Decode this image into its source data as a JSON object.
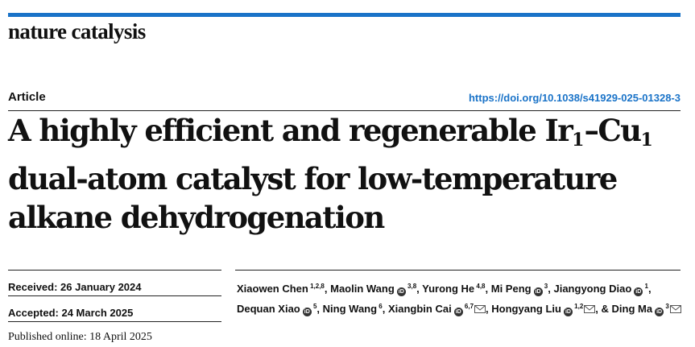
{
  "journal": "nature catalysis",
  "article_type": "Article",
  "doi": "https://doi.org/10.1038/s41929-025-01328-3",
  "title": {
    "part1": "A highly efficient and regenerable Ir",
    "sub1": "1",
    "dash": "–Cu",
    "sub2": "1",
    "line2": "dual-atom catalyst for low-temperature",
    "line3": "alkane dehydrogenation"
  },
  "dates": {
    "received": "Received: 26 January 2024",
    "accepted": "Accepted: 24 March 2025",
    "published": "Published online: 18 April 2025"
  },
  "authors": [
    {
      "name": "Xiaowen Chen",
      "aff": "1,2,8",
      "orcid": false,
      "mail": false
    },
    {
      "name": "Maolin Wang",
      "aff": "3,8",
      "orcid": true,
      "mail": false
    },
    {
      "name": "Yurong He",
      "aff": "4,8",
      "orcid": false,
      "mail": false
    },
    {
      "name": "Mi Peng",
      "aff": "3",
      "orcid": true,
      "mail": false
    },
    {
      "name": "Jiangyong Diao",
      "aff": "1",
      "orcid": true,
      "mail": false
    },
    {
      "name": "Dequan Xiao",
      "aff": "5",
      "orcid": true,
      "mail": false
    },
    {
      "name": "Ning Wang",
      "aff": "6",
      "orcid": false,
      "mail": false
    },
    {
      "name": "Xiangbin Cai",
      "aff": "6,7",
      "orcid": true,
      "mail": true
    },
    {
      "name": "Hongyang Liu",
      "aff": "1,2",
      "orcid": true,
      "mail": true
    },
    {
      "name": "Ding Ma",
      "aff": "3",
      "orcid": true,
      "mail": true
    }
  ],
  "icons": {
    "orcid": "orcid-icon",
    "mail": "envelope-icon"
  },
  "colors": {
    "accent": "#1a73c8",
    "text": "#111111"
  }
}
